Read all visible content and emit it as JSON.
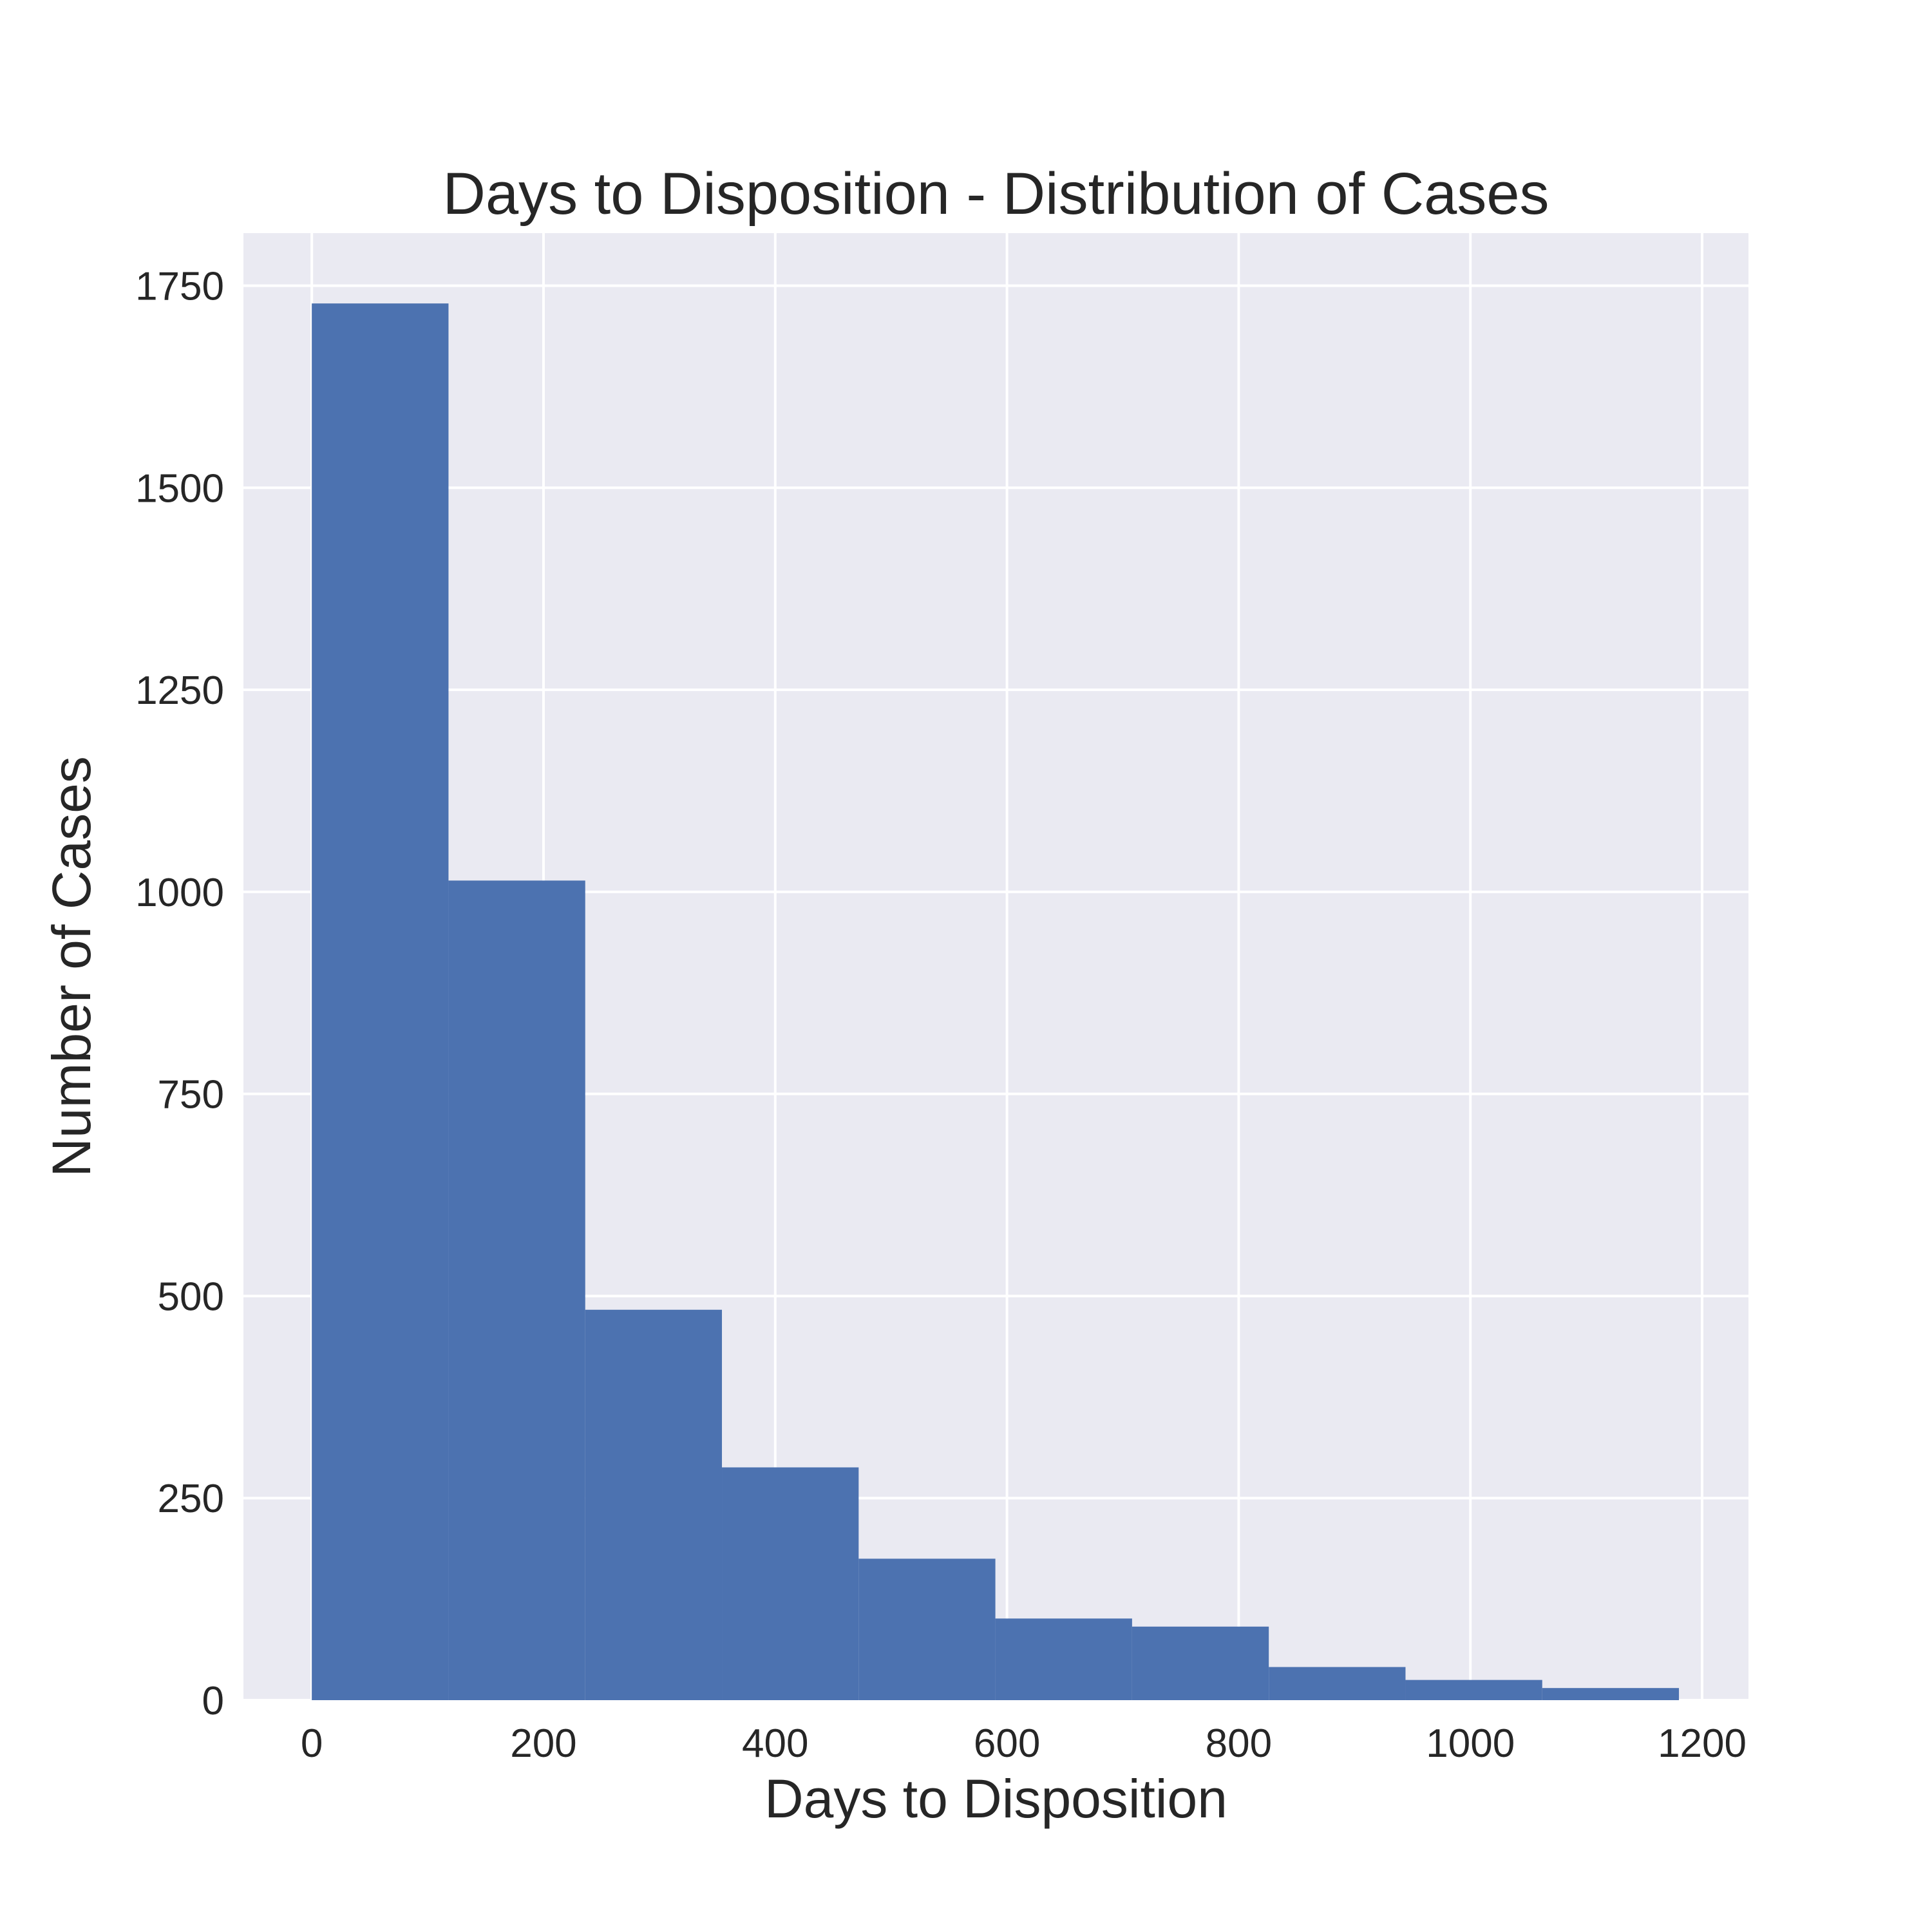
{
  "chart_data": {
    "type": "bar",
    "title": "Days to Disposition - Distribution of Cases",
    "xlabel": "Days to Disposition",
    "ylabel": "Number of Cases",
    "xlim": [
      -59,
      1240
    ],
    "ylim": [
      0,
      1815
    ],
    "x_ticks": [
      0,
      200,
      400,
      600,
      800,
      1000,
      1200
    ],
    "y_ticks": [
      0,
      250,
      500,
      750,
      1000,
      1250,
      1500,
      1750
    ],
    "bin_edges": [
      0,
      118,
      236,
      354,
      472,
      590,
      708,
      826,
      944,
      1062,
      1180
    ],
    "values": [
      1728,
      1014,
      483,
      288,
      175,
      101,
      91,
      41,
      25,
      15
    ],
    "grid": true,
    "legend": "none",
    "colors": {
      "bar": "#4c72b0",
      "background": "#eaeaf2",
      "grid": "#ffffff",
      "text": "#262626"
    }
  }
}
